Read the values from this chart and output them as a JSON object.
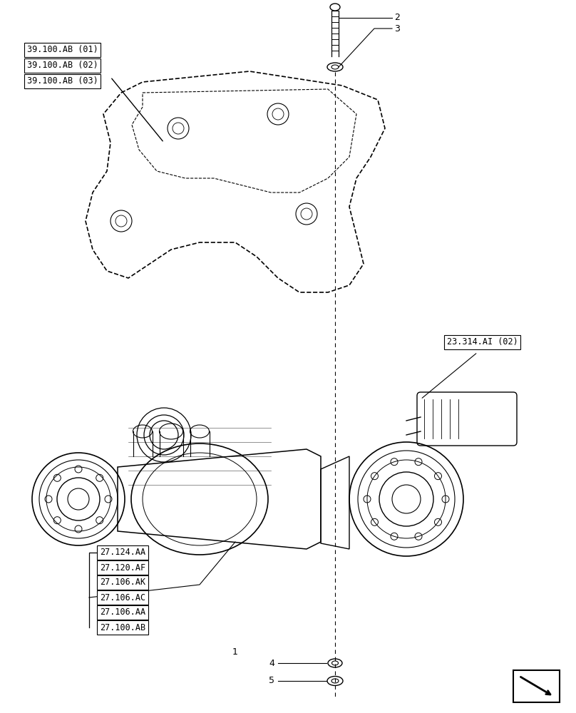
{
  "title": "",
  "background_color": "#ffffff",
  "fig_width": 8.08,
  "fig_height": 10.0,
  "dpi": 100,
  "labels_top_left": [
    "39.100.AB (01)",
    "39.100.AB (02)",
    "39.100.AB (03)"
  ],
  "labels_bottom_left": [
    "27.124.AA",
    "27.120.AF",
    "27.106.AK",
    "27.106.AC",
    "27.106.AA",
    "27.100.AB"
  ],
  "label_top_right": "23.314.AI (02)",
  "part_numbers_top": [
    "2",
    "3"
  ],
  "part_numbers_bottom": [
    "1",
    "4",
    "5"
  ],
  "line_color": "#000000",
  "box_color": "#000000",
  "dashed_line_color": "#555555",
  "font_size_labels": 8.5,
  "font_size_numbers": 9
}
